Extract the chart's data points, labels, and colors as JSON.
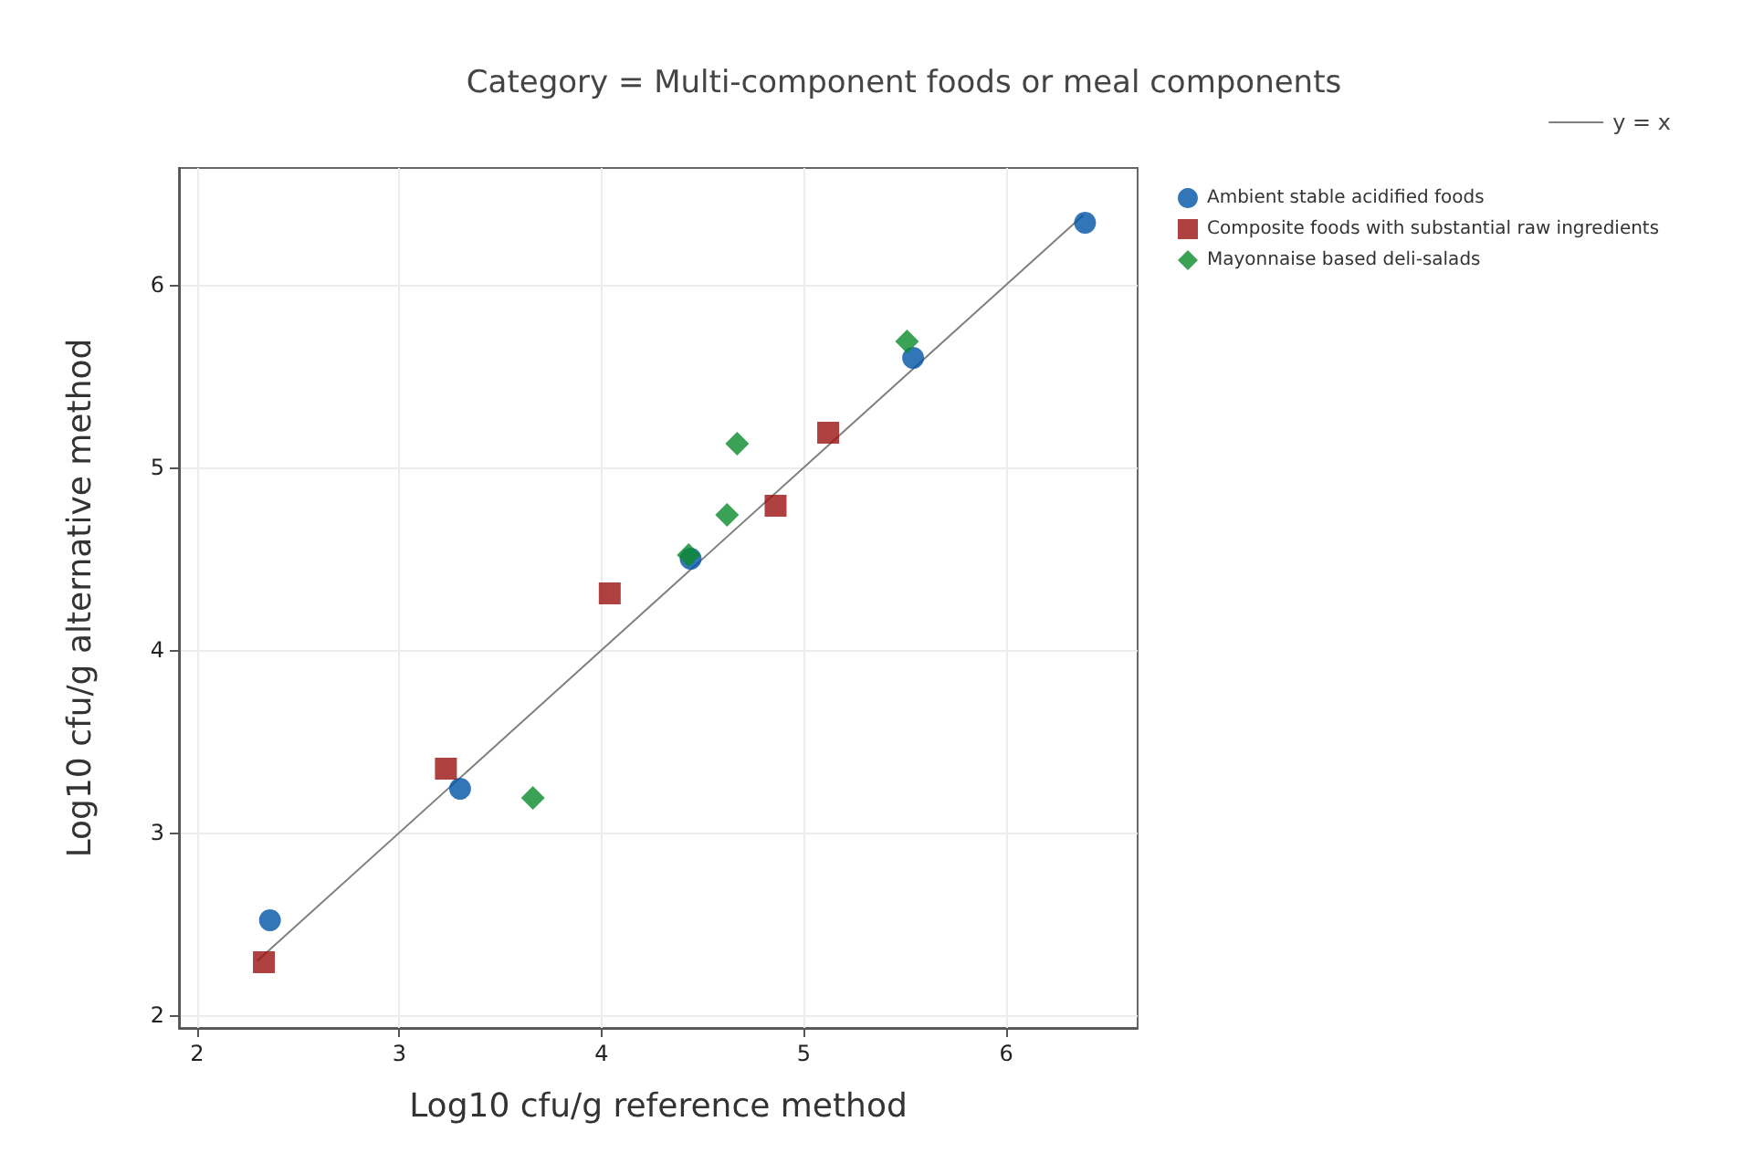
{
  "chart_data": {
    "type": "scatter",
    "title": "Category = Multi-component foods or meal components",
    "xlabel": "Log10 cfu/g reference method",
    "ylabel": "Log10 cfu/g alternative method",
    "xlim": [
      1.91,
      6.65
    ],
    "xticks": [
      2,
      3,
      4,
      5,
      6
    ],
    "ylim": [
      1.93,
      6.64
    ],
    "yticks": [
      2,
      3,
      4,
      5,
      6
    ],
    "grid": true,
    "legend": "right",
    "series": [
      {
        "name": "Ambient stable acidified foods",
        "color": "#0054a6",
        "marker": "circle",
        "x": [
          2.36,
          3.3,
          4.44,
          5.54,
          6.39
        ],
        "values": [
          2.52,
          3.24,
          4.5,
          5.6,
          6.34
        ]
      },
      {
        "name": "Composite foods with substantial raw ingredients",
        "color": "#9b1111",
        "marker": "square",
        "x": [
          2.33,
          3.23,
          4.04,
          4.86,
          5.12
        ],
        "values": [
          2.29,
          3.35,
          4.31,
          4.79,
          5.19
        ]
      },
      {
        "name": "Mayonnaise based deli-salads",
        "color": "#0a8a2a",
        "marker": "diamond",
        "x": [
          3.66,
          4.43,
          4.62,
          4.67,
          5.51
        ],
        "values": [
          3.19,
          4.52,
          4.74,
          5.13,
          5.69
        ]
      },
      {
        "name": "y = x",
        "type": "line",
        "color": "#808080",
        "marker": "none",
        "line_style": "solid",
        "x": [
          2.3,
          6.38
        ],
        "values": [
          2.3,
          6.38
        ]
      }
    ]
  }
}
